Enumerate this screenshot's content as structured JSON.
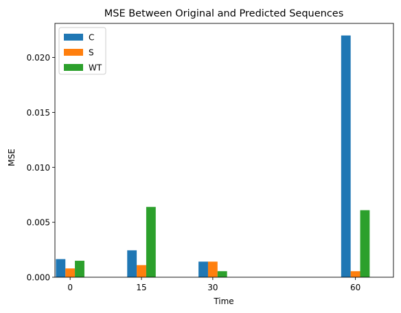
{
  "chart_data": {
    "type": "bar",
    "title": "MSE Between Original and Predicted Sequences",
    "xlabel": "Time",
    "ylabel": "MSE",
    "x": [
      0,
      15,
      30,
      60
    ],
    "xlim": [
      -3.2,
      68.0
    ],
    "ylim": [
      0,
      0.0231
    ],
    "yticks": [
      0.0,
      0.005,
      0.01,
      0.015,
      0.02
    ],
    "ytick_labels": [
      "0.000",
      "0.005",
      "0.010",
      "0.015",
      "0.020"
    ],
    "xtick_labels": [
      "0",
      "15",
      "30",
      "60"
    ],
    "bar_width": 2,
    "legend_position": "top-left",
    "grid": false,
    "series": [
      {
        "name": "C",
        "color": "#1f77b4",
        "values": [
          0.00165,
          0.00245,
          0.00142,
          0.022
        ]
      },
      {
        "name": "S",
        "color": "#ff7f0e",
        "values": [
          0.0008,
          0.0011,
          0.00142,
          0.00055
        ]
      },
      {
        "name": "WT",
        "color": "#2ca02c",
        "values": [
          0.0015,
          0.0064,
          0.00055,
          0.0061
        ]
      }
    ]
  }
}
